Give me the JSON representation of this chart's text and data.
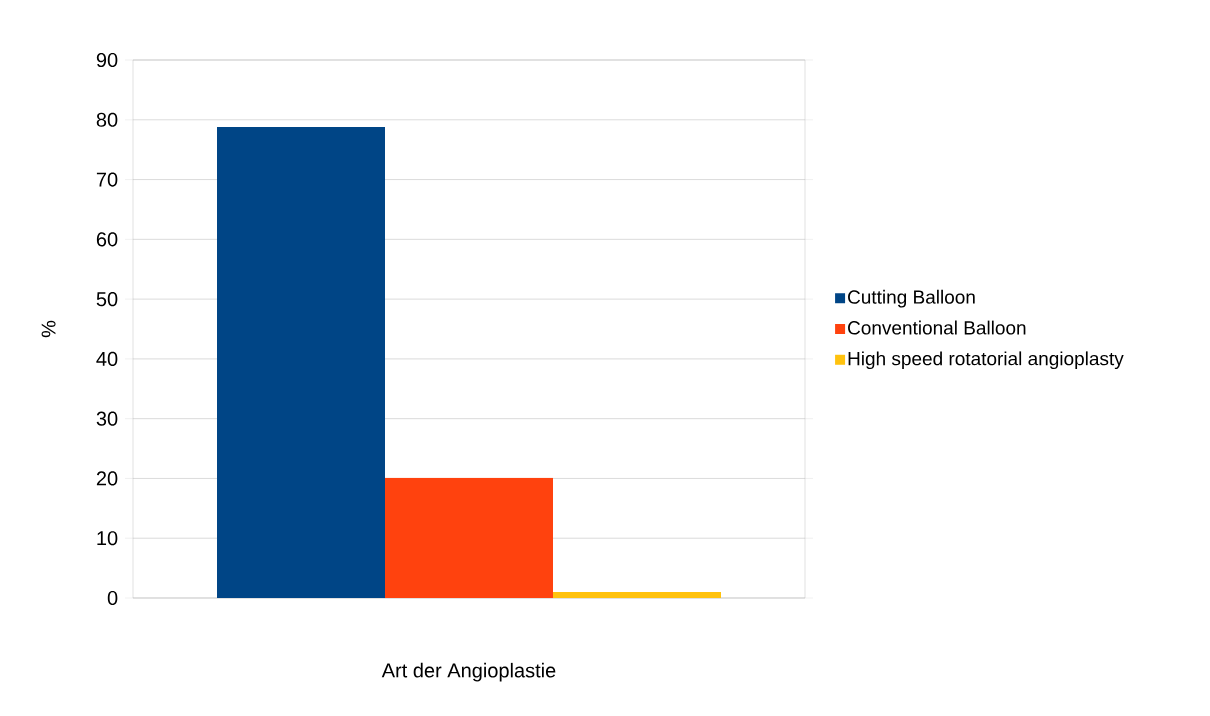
{
  "chart_data": {
    "type": "bar",
    "xlabel": "Art der Angioplastie",
    "ylabel": "%",
    "categories": [
      null
    ],
    "series": [
      {
        "name": "Cutting Balloon",
        "color": "#004586",
        "values": [
          78.8
        ]
      },
      {
        "name": "Conventional Balloon",
        "color": "#ff420e",
        "values": [
          20.1
        ]
      },
      {
        "name": "High speed rotatorial angioplasty",
        "color": "#ffc20e",
        "values": [
          1.0
        ]
      }
    ],
    "ylim": [
      0,
      90
    ],
    "yticks": [
      0,
      10,
      20,
      30,
      40,
      50,
      60,
      70,
      80,
      90
    ],
    "grid": "y",
    "legend": "right"
  }
}
